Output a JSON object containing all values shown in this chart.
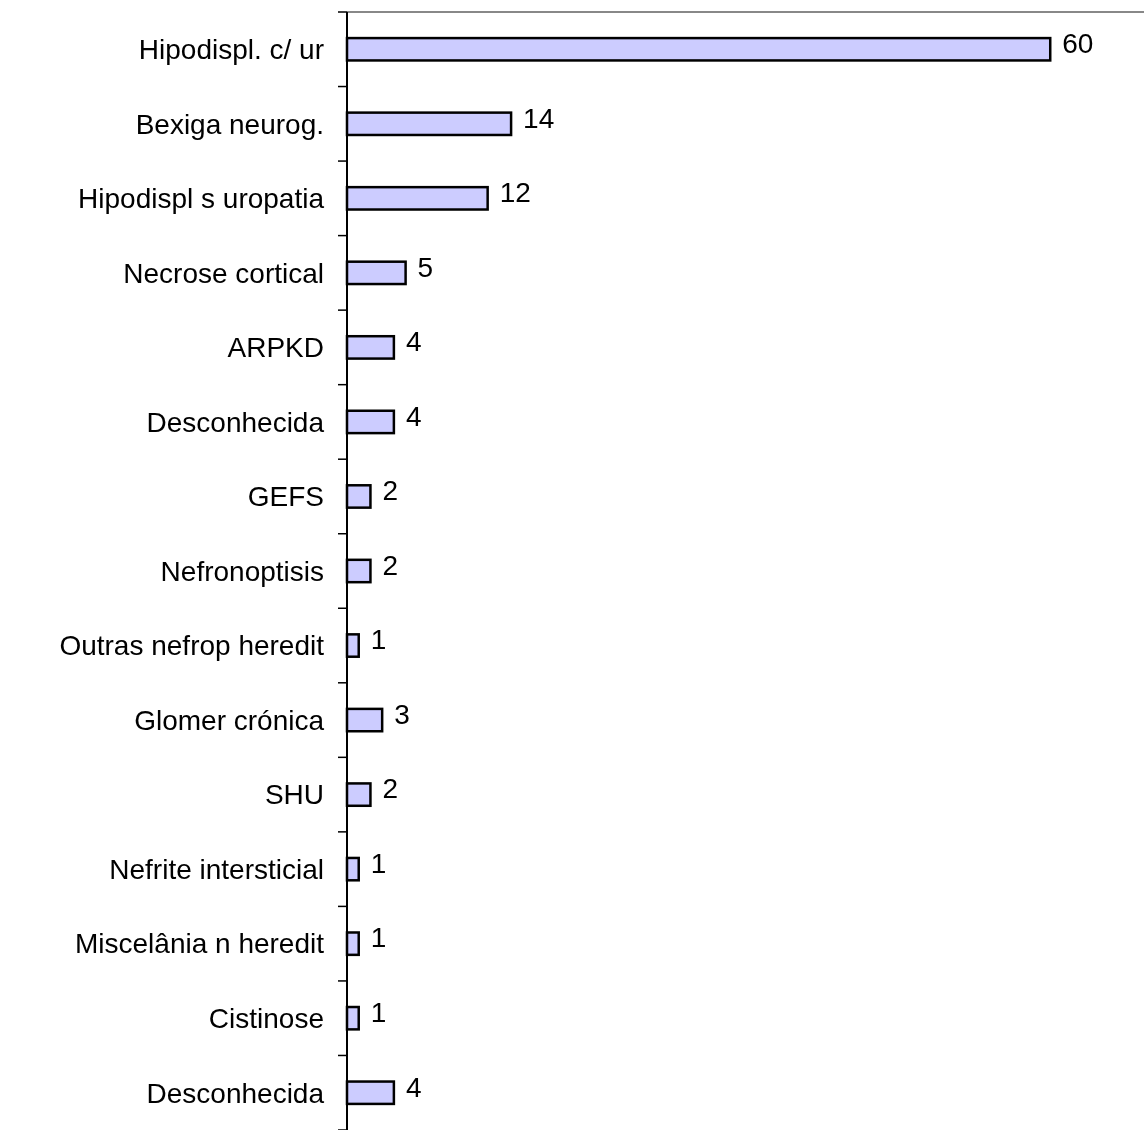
{
  "chart_data": {
    "type": "bar",
    "orientation": "horizontal",
    "categories": [
      "Hipodispl. c/ ur",
      "Bexiga neurog.",
      "Hipodispl s uropatia",
      "Necrose cortical",
      "ARPKD",
      "Desconhecida",
      "GEFS",
      "Nefronoptisis",
      "Outras nefrop heredit",
      "Glomer crónica",
      "SHU",
      "Nefrite intersticial",
      "Miscelânia n heredit",
      "Cistinose",
      "Desconhecida"
    ],
    "values": [
      60,
      14,
      12,
      5,
      4,
      4,
      2,
      2,
      1,
      3,
      2,
      1,
      1,
      1,
      4
    ],
    "color": "#ccccff",
    "xlim": [
      0,
      68
    ],
    "data_labels": true
  }
}
